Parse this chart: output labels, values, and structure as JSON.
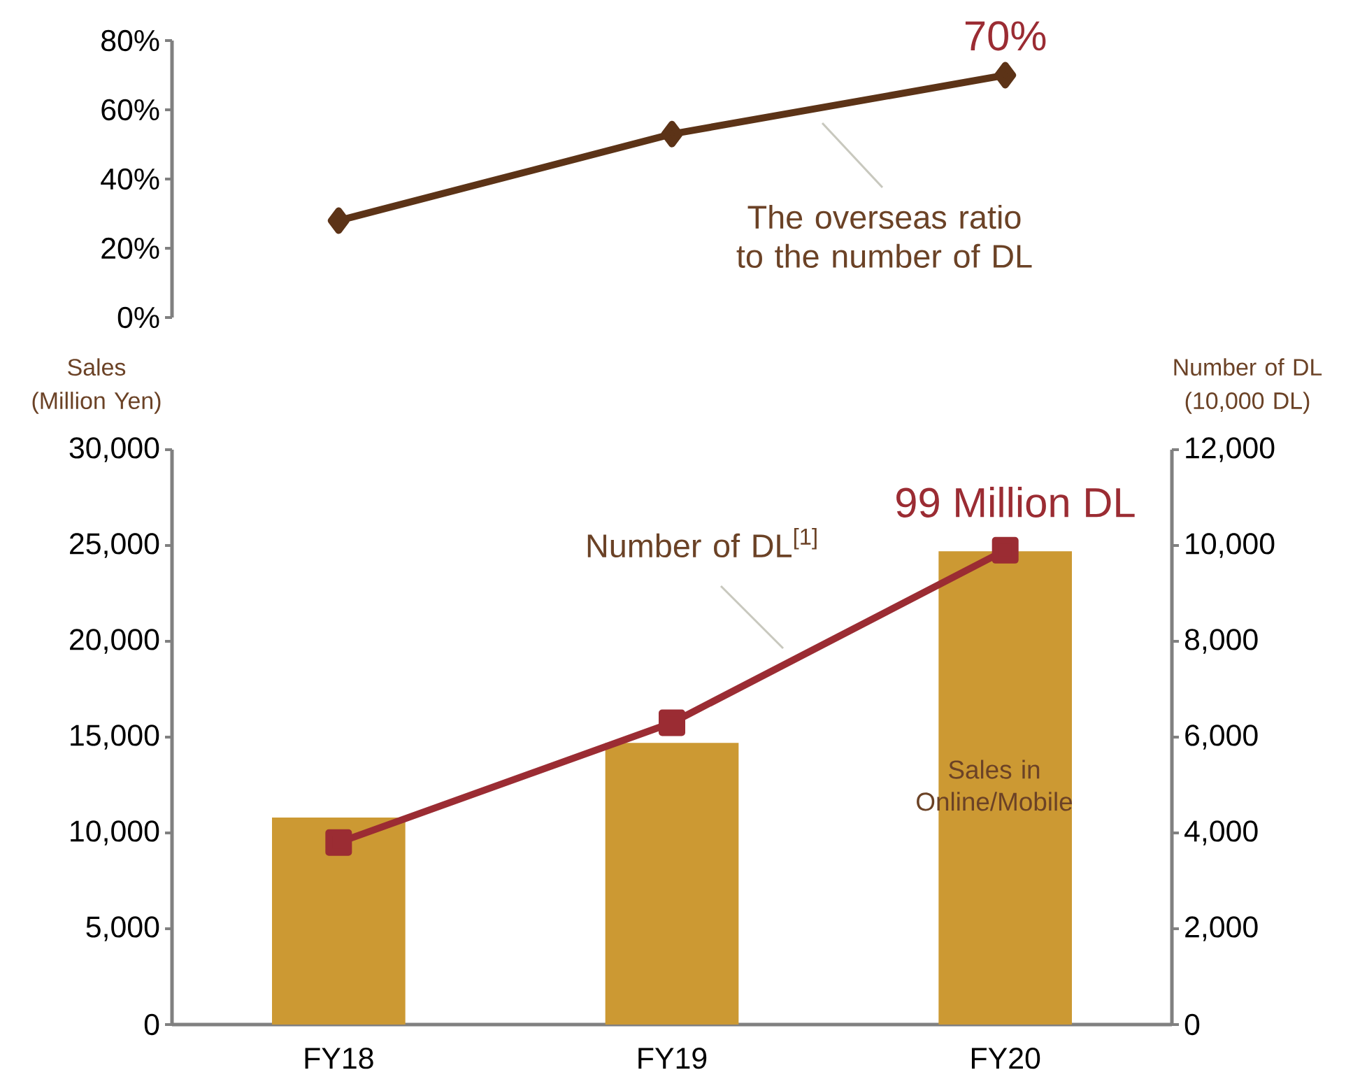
{
  "chart_data": [
    {
      "type": "line",
      "categories": [
        null,
        null,
        null
      ],
      "tick_labels": "y",
      "ylim": [
        0,
        80
      ],
      "yticks": [
        {
          "value": 0,
          "label": "0%"
        },
        {
          "value": 20,
          "label": "20%"
        },
        {
          "value": 40,
          "label": "40%"
        },
        {
          "value": 60,
          "label": "60%"
        },
        {
          "value": 80,
          "label": "80%"
        }
      ],
      "series": [
        {
          "name": "The overseas ratio to the number of DL",
          "color": "#5c3317",
          "marker": "diamond",
          "values": [
            28,
            53,
            70
          ],
          "value_labels": [
            null,
            null,
            "70%"
          ]
        }
      ]
    },
    {
      "type": "bar",
      "categories": [
        "FY18",
        "FY19",
        "FY20"
      ],
      "ylabel": "Sales (Million Yen)",
      "y2label": "Number of DL (10,000 DL)",
      "ylim": [
        0,
        30000
      ],
      "yticks": [
        0,
        {
          "value": 5000,
          "label": "5,000"
        },
        {
          "value": 10000,
          "label": "10,000"
        },
        {
          "value": 15000,
          "label": "15,000"
        },
        {
          "value": 20000,
          "label": "20,000"
        },
        {
          "value": 25000,
          "label": "25,000"
        },
        {
          "value": 30000,
          "label": "30,000"
        }
      ],
      "y2lim": [
        0,
        12000
      ],
      "y2ticks": [
        0,
        {
          "value": 2000,
          "label": "2,000"
        },
        {
          "value": 4000,
          "label": "4,000"
        },
        {
          "value": 6000,
          "label": "6,000"
        },
        {
          "value": 8000,
          "label": "8,000"
        },
        {
          "value": 10000,
          "label": "10,000"
        },
        {
          "value": 12000,
          "label": "12,000"
        }
      ],
      "series": [
        {
          "name": "Sales in Online/Mobile",
          "color": "#cc9933",
          "values": [
            10800,
            14700,
            24700
          ]
        },
        {
          "name": "Number of DL$^{[1]}$",
          "type": "line",
          "axis": "y2",
          "color": "#9b2c33",
          "marker": "square",
          "values": [
            3800,
            6300,
            9900
          ]
        }
      ],
      "annotations": [
        "99 Million DL"
      ]
    }
  ]
}
